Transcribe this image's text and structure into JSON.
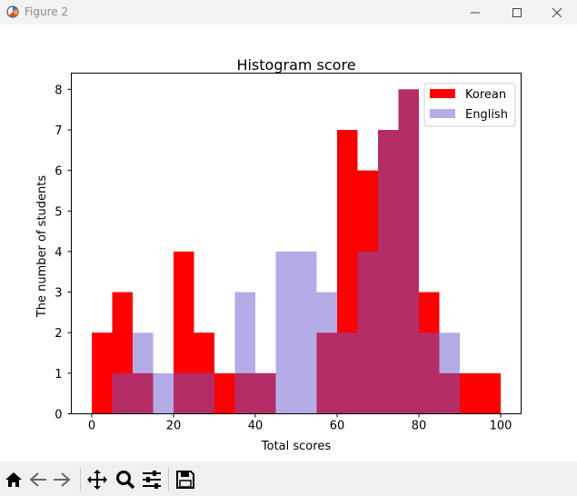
{
  "window": {
    "title": "Figure 2"
  },
  "colors": {
    "korean": "#ff0000",
    "english": "#6a5acd",
    "overlap": "#b32c63"
  },
  "icons": [
    "app-icon",
    "minimize-icon",
    "maximize-icon",
    "close-icon",
    "home-icon",
    "back-arrow-icon",
    "forward-arrow-icon",
    "pan-icon",
    "zoom-icon",
    "configure-subplots-icon",
    "save-icon"
  ],
  "chart_data": {
    "type": "bar",
    "subtype": "histogram",
    "title": "Histogram score",
    "xlabel": "Total scores",
    "ylabel": "The number of students",
    "xlim": [
      -5,
      105
    ],
    "ylim": [
      0,
      8.4
    ],
    "xticks": [
      "0",
      "20",
      "40",
      "60",
      "80",
      "100"
    ],
    "yticks": [
      "0",
      "1",
      "2",
      "3",
      "4",
      "5",
      "6",
      "7",
      "8"
    ],
    "bin_width": 5,
    "bin_starts": [
      0,
      5,
      10,
      15,
      20,
      25,
      30,
      35,
      40,
      45,
      50,
      55,
      60,
      65,
      70,
      75,
      80,
      85,
      90,
      95
    ],
    "legend": {
      "position": "top-right",
      "entries": [
        "Korean",
        "English"
      ]
    },
    "series": [
      {
        "name": "Korean",
        "values": [
          2,
          3,
          1,
          0,
          4,
          2,
          1,
          1,
          1,
          0,
          0,
          2,
          7,
          6,
          7,
          8,
          3,
          1,
          1,
          1
        ]
      },
      {
        "name": "English",
        "values": [
          0,
          1,
          2,
          1,
          1,
          1,
          0,
          3,
          1,
          4,
          4,
          3,
          2,
          4,
          7,
          8,
          2,
          2,
          0,
          0
        ]
      }
    ]
  }
}
